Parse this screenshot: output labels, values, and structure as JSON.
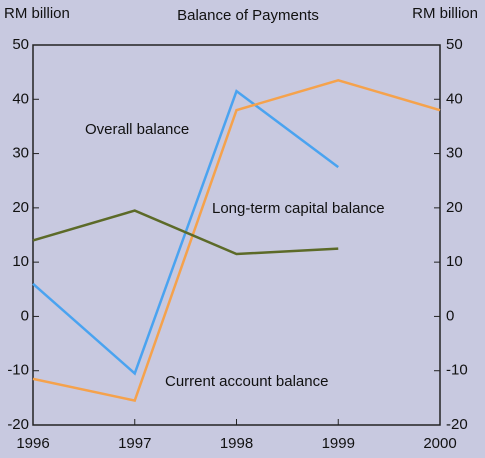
{
  "chart_data": {
    "type": "line",
    "title": "Balance of Payments",
    "ylabel": "RM billion",
    "y2label": "RM billion",
    "x": [
      1996,
      1997,
      1998,
      1999,
      2000
    ],
    "xlim": [
      1996,
      2000
    ],
    "xticks": [
      1996,
      1997,
      1998,
      1999,
      2000
    ],
    "ylim": [
      -20,
      50
    ],
    "yticks": [
      -20,
      -10,
      0,
      10,
      20,
      30,
      40,
      50
    ],
    "y2lim": [
      -20,
      50
    ],
    "y2ticks": [
      -20,
      -10,
      0,
      10,
      20,
      30,
      40,
      50
    ],
    "series": [
      {
        "name": "Overall balance",
        "color": "#4aa3f0",
        "values": [
          6,
          -10.5,
          41.5,
          27.5,
          null
        ]
      },
      {
        "name": "Current account balance",
        "color": "#f5a24c",
        "values": [
          -11.5,
          -15.5,
          38,
          43.5,
          38
        ]
      },
      {
        "name": "Long-term capital balance",
        "color": "#5c6a28",
        "values": [
          14,
          19.5,
          11.5,
          12.5,
          null
        ]
      }
    ]
  }
}
